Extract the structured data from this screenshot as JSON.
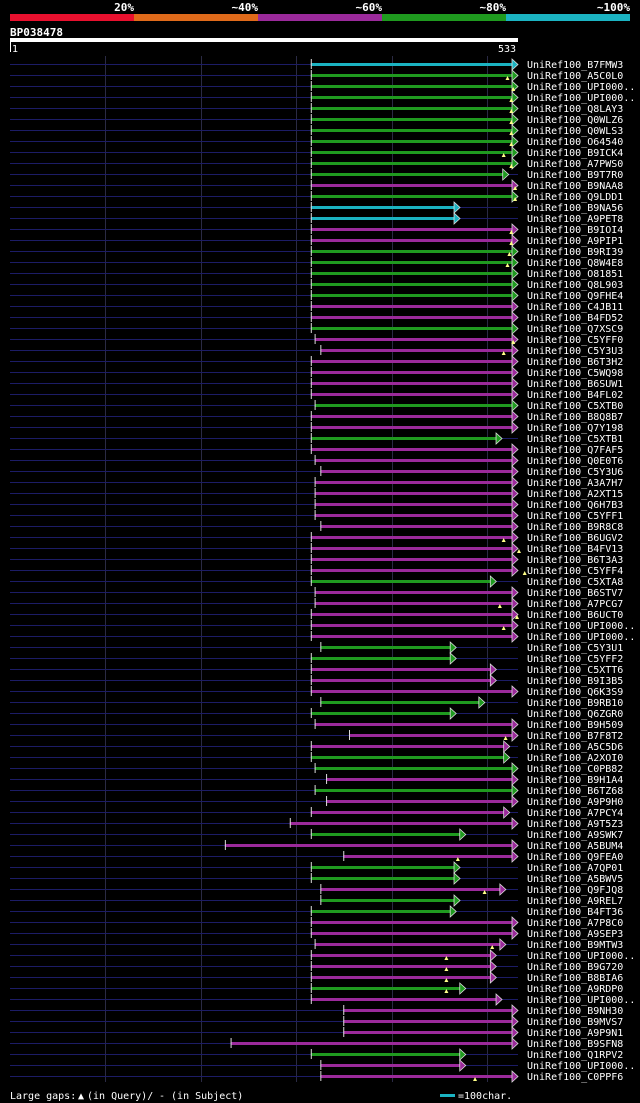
{
  "query_id": "BP038478",
  "query_start_label": "1",
  "query_end_label": "533",
  "query_length": 533,
  "identity_scale": [
    {
      "label": "20%",
      "color": "#e8102e"
    },
    {
      "label": "~40%",
      "color": "#e06a1a"
    },
    {
      "label": "~60%",
      "color": "#9b2a9b"
    },
    {
      "label": "~80%",
      "color": "#1f9a1f"
    },
    {
      "label": "~100%",
      "color": "#1bb3c2"
    }
  ],
  "footer": {
    "gap_text": "Large gaps: ",
    "gap_query": "(in Query)/",
    "gap_subject": "- (in Subject)",
    "scale_text": "=100char."
  },
  "chart_data": {
    "type": "alignment",
    "x_range": [
      1,
      533
    ],
    "x_unit": "query residue",
    "color_key": {
      "cyan": "~100%",
      "green": "~80%",
      "purple": "~60%",
      "orange": "~40%",
      "red": "20%"
    },
    "hits": [
      {
        "label": "UniRef100_B7FMW3",
        "start": 316,
        "end": 540,
        "color": "cyan",
        "gaps": []
      },
      {
        "label": "UniRef100_A5C0L0",
        "start": 316,
        "end": 540,
        "color": "green",
        "gaps": [
          522
        ]
      },
      {
        "label": "UniRef100_UPI000..",
        "start": 316,
        "end": 540,
        "color": "green",
        "gaps": [
          528
        ]
      },
      {
        "label": "UniRef100_UPI000..",
        "start": 316,
        "end": 540,
        "color": "green",
        "gaps": [
          526
        ]
      },
      {
        "label": "UniRef100_Q8LAY3",
        "start": 316,
        "end": 540,
        "color": "green",
        "gaps": [
          526
        ]
      },
      {
        "label": "UniRef100_Q0WLZ6",
        "start": 316,
        "end": 540,
        "color": "green",
        "gaps": [
          526
        ]
      },
      {
        "label": "UniRef100_Q0WLS3",
        "start": 316,
        "end": 540,
        "color": "green",
        "gaps": [
          526
        ]
      },
      {
        "label": "UniRef100_O64540",
        "start": 316,
        "end": 540,
        "color": "green",
        "gaps": [
          526
        ]
      },
      {
        "label": "UniRef100_B9ICK4",
        "start": 316,
        "end": 540,
        "color": "green",
        "gaps": [
          518
        ]
      },
      {
        "label": "UniRef100_A7PWS0",
        "start": 316,
        "end": 540,
        "color": "green",
        "gaps": [
          526
        ]
      },
      {
        "label": "UniRef100_B9T7R0",
        "start": 316,
        "end": 517,
        "color": "green",
        "gaps": []
      },
      {
        "label": "UniRef100_B9NAA8",
        "start": 316,
        "end": 540,
        "color": "purple",
        "gaps": [
          530
        ]
      },
      {
        "label": "UniRef100_Q9LDD1",
        "start": 316,
        "end": 540,
        "color": "green",
        "gaps": [
          530
        ]
      },
      {
        "label": "UniRef100_B9NA56",
        "start": 316,
        "end": 466,
        "color": "cyan",
        "gaps": []
      },
      {
        "label": "UniRef100_A9PET8",
        "start": 316,
        "end": 466,
        "color": "cyan",
        "gaps": []
      },
      {
        "label": "UniRef100_B9IOI4",
        "start": 316,
        "end": 540,
        "color": "purple",
        "gaps": [
          526
        ]
      },
      {
        "label": "UniRef100_A9PIP1",
        "start": 316,
        "end": 540,
        "color": "purple",
        "gaps": [
          526
        ]
      },
      {
        "label": "UniRef100_B9RI39",
        "start": 316,
        "end": 540,
        "color": "green",
        "gaps": [
          524
        ]
      },
      {
        "label": "UniRef100_Q8W4E8",
        "start": 316,
        "end": 540,
        "color": "green",
        "gaps": [
          522
        ]
      },
      {
        "label": "UniRef100_O81851",
        "start": 316,
        "end": 540,
        "color": "green",
        "gaps": []
      },
      {
        "label": "UniRef100_Q8L903",
        "start": 316,
        "end": 540,
        "color": "green",
        "gaps": []
      },
      {
        "label": "UniRef100_Q9FHE4",
        "start": 316,
        "end": 540,
        "color": "green",
        "gaps": []
      },
      {
        "label": "UniRef100_C4JB11",
        "start": 316,
        "end": 540,
        "color": "purple",
        "gaps": []
      },
      {
        "label": "UniRef100_B4FD52",
        "start": 316,
        "end": 540,
        "color": "purple",
        "gaps": []
      },
      {
        "label": "UniRef100_Q7XSC9",
        "start": 316,
        "end": 540,
        "color": "green",
        "gaps": []
      },
      {
        "label": "UniRef100_C5YFF0",
        "start": 320,
        "end": 540,
        "color": "purple",
        "gaps": [
          528
        ]
      },
      {
        "label": "UniRef100_C5Y3U3",
        "start": 326,
        "end": 540,
        "color": "purple",
        "gaps": [
          518
        ]
      },
      {
        "label": "UniRef100_B6T3H2",
        "start": 316,
        "end": 540,
        "color": "purple",
        "gaps": []
      },
      {
        "label": "UniRef100_C5WQ98",
        "start": 316,
        "end": 536,
        "color": "purple",
        "gaps": []
      },
      {
        "label": "UniRef100_B6SUW1",
        "start": 316,
        "end": 540,
        "color": "purple",
        "gaps": []
      },
      {
        "label": "UniRef100_B4FL02",
        "start": 316,
        "end": 540,
        "color": "purple",
        "gaps": []
      },
      {
        "label": "UniRef100_C5XTB0",
        "start": 320,
        "end": 540,
        "color": "green",
        "gaps": []
      },
      {
        "label": "UniRef100_B8Q8B7",
        "start": 316,
        "end": 540,
        "color": "purple",
        "gaps": []
      },
      {
        "label": "UniRef100_Q7Y198",
        "start": 316,
        "end": 540,
        "color": "purple",
        "gaps": []
      },
      {
        "label": "UniRef100_C5XTB1",
        "start": 316,
        "end": 510,
        "color": "green",
        "gaps": []
      },
      {
        "label": "UniRef100_Q7FAF5",
        "start": 316,
        "end": 540,
        "color": "purple",
        "gaps": []
      },
      {
        "label": "UniRef100_Q0E0T6",
        "start": 320,
        "end": 540,
        "color": "purple",
        "gaps": []
      },
      {
        "label": "UniRef100_C5Y3U6",
        "start": 326,
        "end": 540,
        "color": "purple",
        "gaps": []
      },
      {
        "label": "UniRef100_A3A7H7",
        "start": 320,
        "end": 540,
        "color": "purple",
        "gaps": []
      },
      {
        "label": "UniRef100_A2XT15",
        "start": 320,
        "end": 540,
        "color": "purple",
        "gaps": []
      },
      {
        "label": "UniRef100_Q6H7B3",
        "start": 320,
        "end": 540,
        "color": "purple",
        "gaps": []
      },
      {
        "label": "UniRef100_C5YFF1",
        "start": 320,
        "end": 538,
        "color": "purple",
        "gaps": []
      },
      {
        "label": "UniRef100_B9R8C8",
        "start": 326,
        "end": 540,
        "color": "purple",
        "gaps": []
      },
      {
        "label": "UniRef100_B6UGV2",
        "start": 316,
        "end": 540,
        "color": "purple",
        "gaps": [
          518
        ]
      },
      {
        "label": "UniRef100_B4FV13",
        "start": 316,
        "end": 540,
        "color": "purple",
        "gaps": [
          534
        ]
      },
      {
        "label": "UniRef100_B6T3A3",
        "start": 316,
        "end": 540,
        "color": "purple",
        "gaps": []
      },
      {
        "label": "UniRef100_C5YFF4",
        "start": 316,
        "end": 540,
        "color": "purple",
        "gaps": [
          540
        ]
      },
      {
        "label": "UniRef100_C5XTA8",
        "start": 316,
        "end": 504,
        "color": "green",
        "gaps": []
      },
      {
        "label": "UniRef100_B6STV7",
        "start": 320,
        "end": 536,
        "color": "purple",
        "gaps": []
      },
      {
        "label": "UniRef100_A7PCG7",
        "start": 320,
        "end": 532,
        "color": "purple",
        "gaps": [
          514
        ]
      },
      {
        "label": "UniRef100_B6UCT0",
        "start": 316,
        "end": 540,
        "color": "purple",
        "gaps": [
          532
        ]
      },
      {
        "label": "UniRef100_UPI000..",
        "start": 316,
        "end": 540,
        "color": "purple",
        "gaps": [
          518
        ]
      },
      {
        "label": "UniRef100_UPI000..",
        "start": 316,
        "end": 540,
        "color": "purple",
        "gaps": []
      },
      {
        "label": "UniRef100_C5Y3U1",
        "start": 326,
        "end": 462,
        "color": "green",
        "gaps": []
      },
      {
        "label": "UniRef100_C5YFF2",
        "start": 316,
        "end": 462,
        "color": "green",
        "gaps": []
      },
      {
        "label": "UniRef100_C5XTT6",
        "start": 316,
        "end": 504,
        "color": "purple",
        "gaps": []
      },
      {
        "label": "UniRef100_B9I3B5",
        "start": 316,
        "end": 504,
        "color": "purple",
        "gaps": []
      },
      {
        "label": "UniRef100_Q6K3S9",
        "start": 316,
        "end": 540,
        "color": "purple",
        "gaps": []
      },
      {
        "label": "UniRef100_B9RB10",
        "start": 326,
        "end": 492,
        "color": "green",
        "gaps": []
      },
      {
        "label": "UniRef100_Q6ZGR0",
        "start": 316,
        "end": 462,
        "color": "green",
        "gaps": []
      },
      {
        "label": "UniRef100_B9H509",
        "start": 320,
        "end": 530,
        "color": "purple",
        "gaps": []
      },
      {
        "label": "UniRef100_B7F8T2",
        "start": 356,
        "end": 528,
        "color": "purple",
        "gaps": [
          520
        ]
      },
      {
        "label": "UniRef100_A5C5D6",
        "start": 316,
        "end": 518,
        "color": "purple",
        "gaps": []
      },
      {
        "label": "UniRef100_A2XOI0",
        "start": 316,
        "end": 518,
        "color": "green",
        "gaps": []
      },
      {
        "label": "UniRef100_C0PB82",
        "start": 320,
        "end": 540,
        "color": "green",
        "gaps": []
      },
      {
        "label": "UniRef100_B9H1A4",
        "start": 332,
        "end": 540,
        "color": "purple",
        "gaps": []
      },
      {
        "label": "UniRef100_B6TZ68",
        "start": 320,
        "end": 540,
        "color": "green",
        "gaps": []
      },
      {
        "label": "UniRef100_A9P9H0",
        "start": 332,
        "end": 540,
        "color": "purple",
        "gaps": []
      },
      {
        "label": "UniRef100_A7PCY4",
        "start": 316,
        "end": 518,
        "color": "purple",
        "gaps": []
      },
      {
        "label": "UniRef100_A9T5Z3",
        "start": 294,
        "end": 540,
        "color": "purple",
        "gaps": []
      },
      {
        "label": "UniRef100_A9SWK7",
        "start": 316,
        "end": 472,
        "color": "green",
        "gaps": []
      },
      {
        "label": "UniRef100_A5BUM4",
        "start": 226,
        "end": 540,
        "color": "purple",
        "gaps": []
      },
      {
        "label": "UniRef100_Q9FEA0",
        "start": 350,
        "end": 534,
        "color": "purple",
        "gaps": [
          470
        ]
      },
      {
        "label": "UniRef100_A7QP01",
        "start": 316,
        "end": 466,
        "color": "green",
        "gaps": []
      },
      {
        "label": "UniRef100_A5BWV5",
        "start": 316,
        "end": 466,
        "color": "green",
        "gaps": []
      },
      {
        "label": "UniRef100_Q9FJQ8",
        "start": 326,
        "end": 514,
        "color": "purple",
        "gaps": [
          498
        ]
      },
      {
        "label": "UniRef100_A9REL7",
        "start": 326,
        "end": 466,
        "color": "green",
        "gaps": []
      },
      {
        "label": "UniRef100_B4FT36",
        "start": 316,
        "end": 462,
        "color": "green",
        "gaps": []
      },
      {
        "label": "UniRef100_A7P8C0",
        "start": 316,
        "end": 540,
        "color": "purple",
        "gaps": []
      },
      {
        "label": "UniRef100_A9SEP3",
        "start": 316,
        "end": 540,
        "color": "purple",
        "gaps": []
      },
      {
        "label": "UniRef100_B9MTW3",
        "start": 320,
        "end": 514,
        "color": "purple",
        "gaps": [
          506
        ]
      },
      {
        "label": "UniRef100_UPI000..",
        "start": 316,
        "end": 504,
        "color": "purple",
        "gaps": [
          458
        ]
      },
      {
        "label": "UniRef100_B9G720",
        "start": 316,
        "end": 504,
        "color": "purple",
        "gaps": [
          458
        ]
      },
      {
        "label": "UniRef100_B8BIA6",
        "start": 316,
        "end": 504,
        "color": "purple",
        "gaps": [
          458
        ]
      },
      {
        "label": "UniRef100_A9RDP0",
        "start": 316,
        "end": 472,
        "color": "green",
        "gaps": [
          458
        ]
      },
      {
        "label": "UniRef100_UPI000..",
        "start": 316,
        "end": 510,
        "color": "purple",
        "gaps": []
      },
      {
        "label": "UniRef100_B9NH30",
        "start": 350,
        "end": 540,
        "color": "purple",
        "gaps": []
      },
      {
        "label": "UniRef100_B9MVS7",
        "start": 350,
        "end": 540,
        "color": "purple",
        "gaps": []
      },
      {
        "label": "UniRef100_A9P9N1",
        "start": 350,
        "end": 540,
        "color": "purple",
        "gaps": []
      },
      {
        "label": "UniRef100_B9SFN8",
        "start": 232,
        "end": 528,
        "color": "purple",
        "gaps": []
      },
      {
        "label": "UniRef100_Q1RPV2",
        "start": 316,
        "end": 472,
        "color": "green",
        "gaps": []
      },
      {
        "label": "UniRef100_UPI000..",
        "start": 326,
        "end": 472,
        "color": "purple",
        "gaps": []
      },
      {
        "label": "UniRef100_C0PPF6",
        "start": 326,
        "end": 528,
        "color": "purple",
        "gaps": [
          488
        ]
      }
    ]
  }
}
